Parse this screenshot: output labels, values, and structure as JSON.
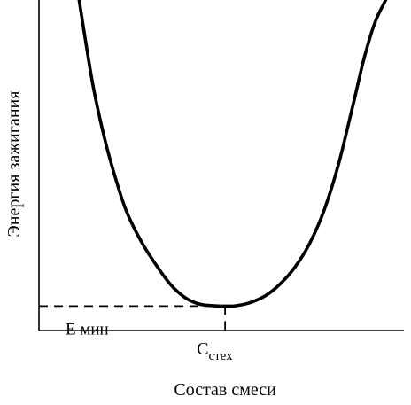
{
  "chart_data": {
    "type": "line",
    "title": "",
    "xlabel": "Состав смеси",
    "ylabel": "Энергия зажигания",
    "xlim": [
      0,
      1
    ],
    "ylim": [
      0,
      1
    ],
    "grid": false,
    "legend": "none",
    "series": [
      {
        "x": [
          0.11,
          0.13,
          0.15,
          0.18,
          0.21,
          0.24,
          0.28,
          0.32,
          0.36,
          0.4,
          0.44,
          0.48,
          0.51,
          0.54,
          0.58,
          0.62,
          0.66,
          0.7,
          0.74,
          0.78,
          0.82,
          0.86,
          0.89,
          0.92,
          0.95
        ],
        "y": [
          1.0,
          0.86,
          0.73,
          0.58,
          0.46,
          0.36,
          0.27,
          0.2,
          0.14,
          0.1,
          0.08,
          0.075,
          0.074,
          0.075,
          0.085,
          0.105,
          0.14,
          0.19,
          0.26,
          0.36,
          0.5,
          0.68,
          0.82,
          0.93,
          1.0
        ]
      }
    ],
    "annotations": {
      "minimum_label": "Е мин",
      "stoich_label_main": "С",
      "stoich_label_sub": "стех",
      "x_at_minimum": 0.51,
      "y_at_minimum": 0.074
    }
  }
}
